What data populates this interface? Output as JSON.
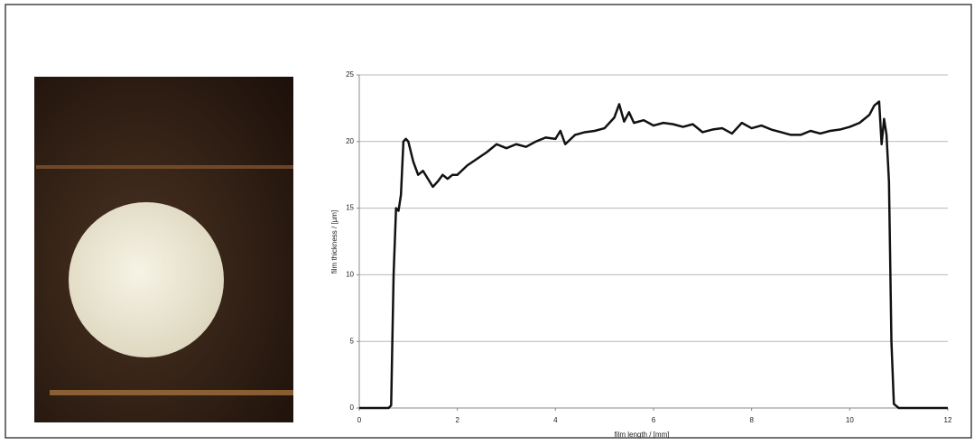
{
  "chart_data": {
    "type": "line",
    "xlabel": "film length / [mm]",
    "ylabel": "film thickness / [µm]",
    "x": [
      0,
      0.6,
      0.65,
      0.7,
      0.75,
      0.8,
      0.85,
      0.9,
      0.95,
      1.0,
      1.1,
      1.2,
      1.3,
      1.4,
      1.5,
      1.6,
      1.7,
      1.8,
      1.9,
      2.0,
      2.2,
      2.4,
      2.6,
      2.8,
      3.0,
      3.2,
      3.4,
      3.6,
      3.8,
      4.0,
      4.1,
      4.2,
      4.4,
      4.6,
      4.8,
      5.0,
      5.2,
      5.3,
      5.4,
      5.5,
      5.6,
      5.8,
      6.0,
      6.2,
      6.4,
      6.6,
      6.8,
      7.0,
      7.2,
      7.4,
      7.6,
      7.8,
      8.0,
      8.2,
      8.4,
      8.6,
      8.8,
      9.0,
      9.2,
      9.4,
      9.6,
      9.8,
      10.0,
      10.2,
      10.4,
      10.5,
      10.6,
      10.65,
      10.7,
      10.75,
      10.8,
      10.85,
      10.9,
      11.0,
      11.5,
      12
    ],
    "series": [
      {
        "color": "#111111",
        "values": [
          0,
          0,
          0.2,
          10,
          15,
          14.8,
          16,
          20,
          20.2,
          20,
          18.5,
          17.5,
          17.8,
          17.2,
          16.6,
          17,
          17.5,
          17.2,
          17.5,
          17.5,
          18.2,
          18.7,
          19.2,
          19.8,
          19.5,
          19.8,
          19.6,
          20,
          20.3,
          20.2,
          20.8,
          19.8,
          20.5,
          20.7,
          20.8,
          21,
          21.8,
          22.8,
          21.5,
          22.2,
          21.4,
          21.6,
          21.2,
          21.4,
          21.3,
          21.1,
          21.3,
          20.7,
          20.9,
          21.0,
          20.6,
          21.4,
          21.0,
          21.2,
          20.9,
          20.7,
          20.5,
          20.5,
          20.8,
          20.6,
          20.8,
          20.9,
          21.1,
          21.4,
          22.0,
          22.7,
          23.0,
          19.8,
          21.7,
          20.5,
          17,
          5,
          0.3,
          0,
          0,
          0
        ]
      }
    ],
    "xlim": [
      0,
      12
    ],
    "xticks": [
      0,
      2,
      4,
      6,
      8,
      10,
      12
    ],
    "ylim": [
      0,
      25
    ],
    "yticks": [
      0,
      5,
      10,
      15,
      20,
      25
    ],
    "grid": true
  }
}
